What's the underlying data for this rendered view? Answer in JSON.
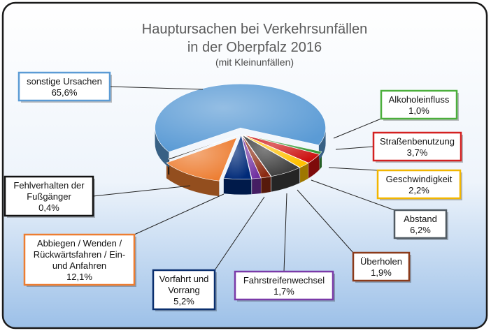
{
  "chart_data": {
    "type": "pie",
    "title": "Hauptursachen bei Verkehrsunfällen",
    "title_line2": "in der Oberpfalz 2016",
    "subtitle": "(mit Kleinunfällen)",
    "slices": [
      {
        "label": "Alkoholeinfluss",
        "label_lines": [
          "Alkoholeinfluss"
        ],
        "value": 1.0,
        "value_text": "1,0%",
        "color": "#3a9a3a",
        "border": "#4caf3c"
      },
      {
        "label": "Straßenbenutzung",
        "label_lines": [
          "Straßenbenutzung"
        ],
        "value": 3.7,
        "value_text": "3,7%",
        "color": "#cc1111",
        "border": "#d42020"
      },
      {
        "label": "Geschwindigkeit",
        "label_lines": [
          "Geschwindigkeit"
        ],
        "value": 2.2,
        "value_text": "2,2%",
        "color": "#ffc000",
        "border": "#f2b600"
      },
      {
        "label": "Abstand",
        "label_lines": [
          "Abstand"
        ],
        "value": 6.2,
        "value_text": "6,2%",
        "color": "#3c3c3c",
        "border": "#505a62"
      },
      {
        "label": "Überholen",
        "label_lines": [
          "Überholen"
        ],
        "value": 1.9,
        "value_text": "1,9%",
        "color": "#8b2a12",
        "border": "#8b3a1a"
      },
      {
        "label": "Fahrstreifenwechsel",
        "label_lines": [
          "Fahrstreifenwechsel"
        ],
        "value": 1.7,
        "value_text": "1,7%",
        "color": "#7030a0",
        "border": "#7a3aa8"
      },
      {
        "label": "Vorfahrt und Vorrang",
        "label_lines": [
          "Vorfahrt und",
          "Vorrang"
        ],
        "value": 5.2,
        "value_text": "5,2%",
        "color": "#002a78",
        "border": "#0a2f6e"
      },
      {
        "label": "Abbiegen / Wenden / Rückwärtsfahren / Ein- und Anfahren",
        "label_lines": [
          "Abbiegen / Wenden /",
          "Rückwärtsfahren / Ein-",
          "und Anfahren"
        ],
        "value": 12.1,
        "value_text": "12,1%",
        "color": "#ed7d31",
        "border": "#ed7d31"
      },
      {
        "label": "Fehlverhalten der Fußgänger",
        "label_lines": [
          "Fehlverhalten der",
          "Fußgänger"
        ],
        "value": 0.4,
        "value_text": "0,4%",
        "color": "#1a1a1a",
        "border": "#111111"
      },
      {
        "label": "sonstige Ursachen",
        "label_lines": [
          "sonstige Ursachen"
        ],
        "value": 65.6,
        "value_text": "65,6%",
        "color": "#5b9bd5",
        "border": "#5b9bd5"
      }
    ]
  }
}
